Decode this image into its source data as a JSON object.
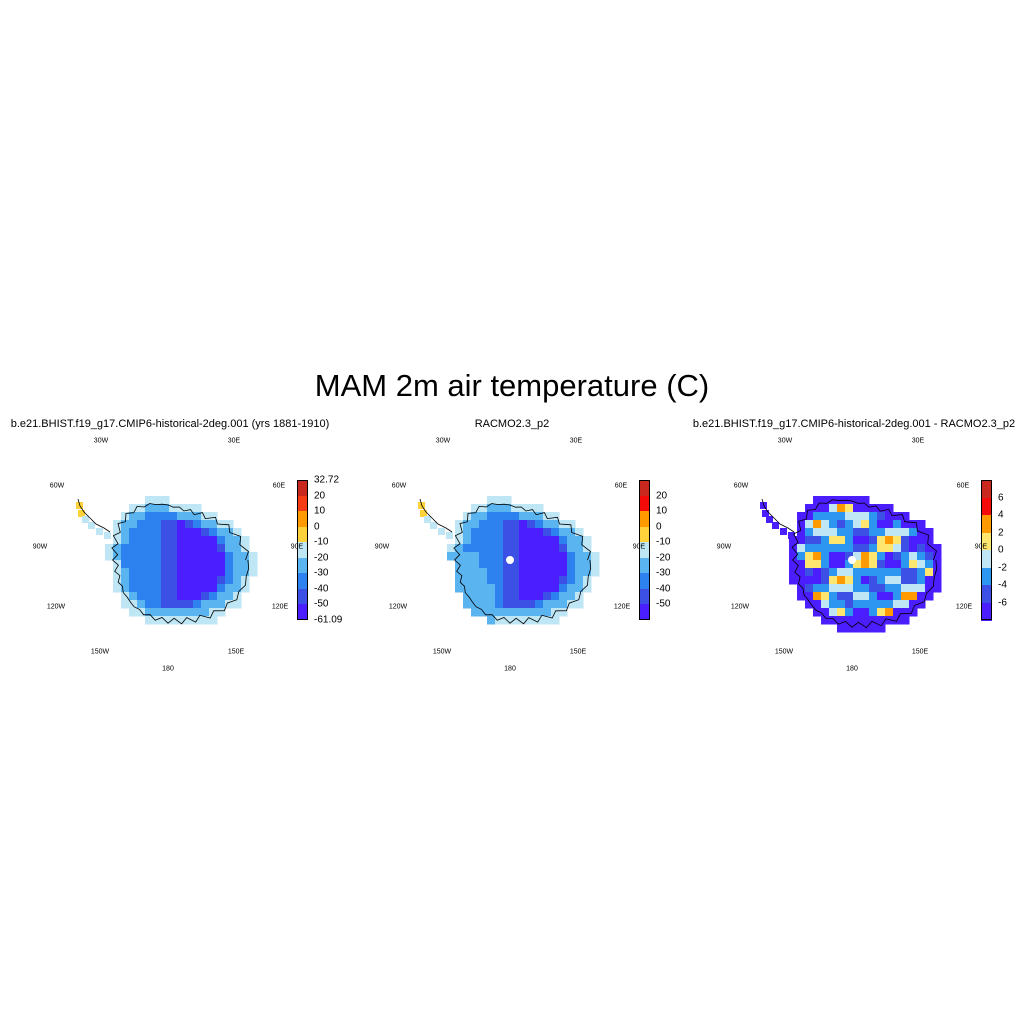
{
  "title": "MAM 2m air temperature (C)",
  "panels": [
    {
      "id": "model",
      "title": "b.e21.BHIST.f19_g17.CMIP6-historical-2deg.001 (yrs 1881-1910)",
      "lon_labels": [
        "30W",
        "30E",
        "60W",
        "60E",
        "90W",
        "90E",
        "120W",
        "120E",
        "150W",
        "150E",
        "180"
      ],
      "colorbar": {
        "labels": [
          "32.72",
          "20",
          "10",
          "0",
          "-10",
          "-20",
          "-30",
          "-40",
          "-50",
          "-61.09"
        ],
        "colors": [
          "#c8281e",
          "#f53c14",
          "#ff9a00",
          "#ffd23c",
          "#bfe6f5",
          "#5ab4f0",
          "#2d82f0",
          "#3c50e6",
          "#4b1eff"
        ]
      }
    },
    {
      "id": "obs",
      "title": "RACMO2.3_p2",
      "lon_labels": [
        "30W",
        "30E",
        "60W",
        "60E",
        "90W",
        "90E",
        "120W",
        "120E",
        "150W",
        "150E",
        "180"
      ],
      "colorbar": {
        "labels": [
          "20",
          "10",
          "0",
          "-10",
          "-20",
          "-30",
          "-40",
          "-50"
        ],
        "colors": [
          "#c8281e",
          "#f50a0a",
          "#ff9a00",
          "#ffd23c",
          "#bfe6f5",
          "#5ab4f0",
          "#2d82f0",
          "#3c50e6",
          "#4b1eff"
        ]
      }
    },
    {
      "id": "diff",
      "title": "b.e21.BHIST.f19_g17.CMIP6-historical-2deg.001 - RACMO2.3_p2",
      "lon_labels": [
        "30W",
        "30E",
        "60W",
        "60E",
        "90W",
        "90E",
        "120W",
        "120E",
        "150W",
        "150E",
        "180"
      ],
      "colorbar": {
        "labels": [
          "6",
          "4",
          "2",
          "0",
          "-2",
          "-4",
          "-6"
        ],
        "colors": [
          "#c8281e",
          "#f50a0a",
          "#ff9a00",
          "#ffe66e",
          "#bfe6f5",
          "#2d96f0",
          "#3c50e6",
          "#4b1eff"
        ]
      }
    }
  ]
}
